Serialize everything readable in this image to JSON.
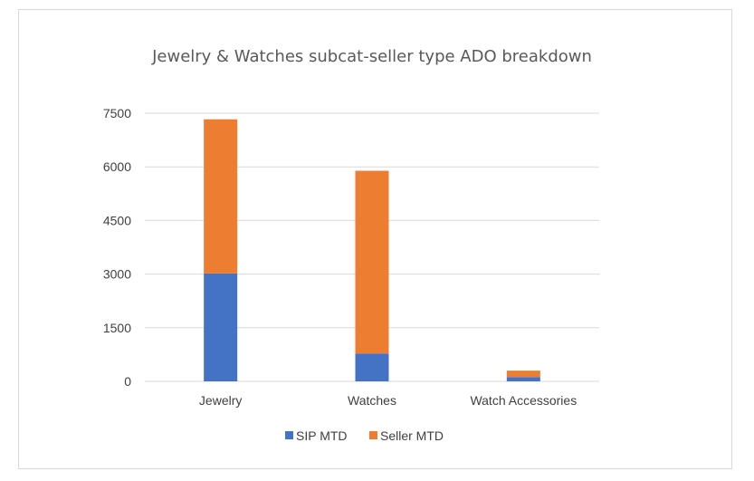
{
  "chart_data": {
    "type": "bar",
    "stacked": true,
    "title": "Jewelry & Watches subcat-seller type ADO breakdown",
    "xlabel": "",
    "ylabel": "",
    "categories": [
      "Jewelry",
      "Watches",
      "Watch Accessories"
    ],
    "series": [
      {
        "name": "SIP MTD",
        "values": [
          3020,
          780,
          120
        ],
        "color": "#4472c4"
      },
      {
        "name": "Seller MTD",
        "values": [
          4310,
          5110,
          180
        ],
        "color": "#ed7d31"
      }
    ],
    "ylim": [
      0,
      7500
    ],
    "yticks": [
      "0",
      "1500",
      "3000",
      "4500",
      "6000",
      "7500"
    ],
    "grid": true,
    "legend": "bottom"
  }
}
